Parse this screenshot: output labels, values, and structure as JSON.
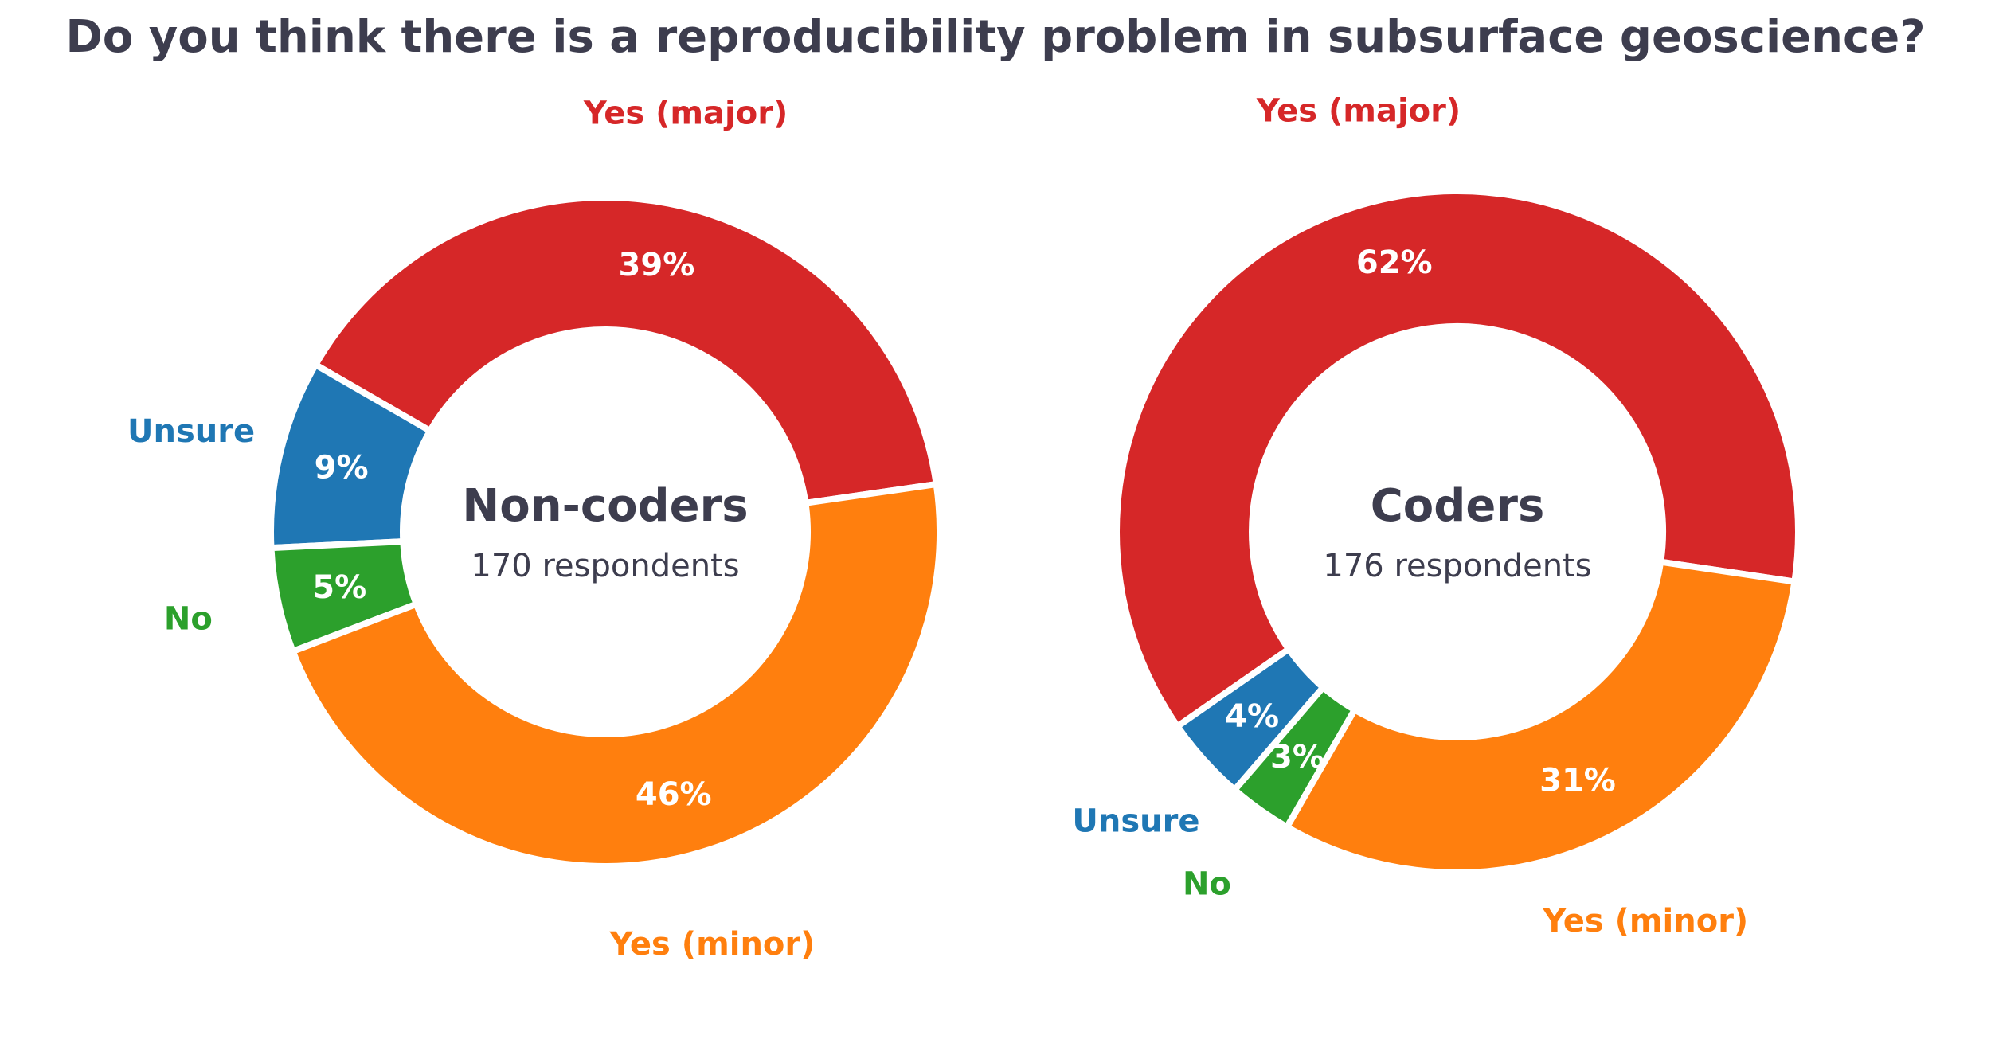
{
  "title": "Do you think there is a reproducibility problem in subsurface geoscience?",
  "colors": {
    "Yes (major)": "#d62728",
    "Unsure": "#1f77b4",
    "No": "#2ca02c",
    "Yes (minor)": "#ff7f0e"
  },
  "chart_data": [
    {
      "type": "pie",
      "center_title": "Non-coders",
      "center_subtitle": "170 respondents",
      "slices": [
        {
          "label": "Yes (major)",
          "value": 39,
          "display": "39%"
        },
        {
          "label": "Unsure",
          "value": 9,
          "display": "9%"
        },
        {
          "label": "No",
          "value": 5,
          "display": "5%"
        },
        {
          "label": "Yes (minor)",
          "value": 46,
          "display": "46%"
        }
      ]
    },
    {
      "type": "pie",
      "center_title": "Coders",
      "center_subtitle": "176 respondents",
      "slices": [
        {
          "label": "Yes (major)",
          "value": 62,
          "display": "62%"
        },
        {
          "label": "Unsure",
          "value": 4,
          "display": "4%"
        },
        {
          "label": "No",
          "value": 3,
          "display": "3%"
        },
        {
          "label": "Yes (minor)",
          "value": 31,
          "display": "31%"
        }
      ]
    }
  ]
}
